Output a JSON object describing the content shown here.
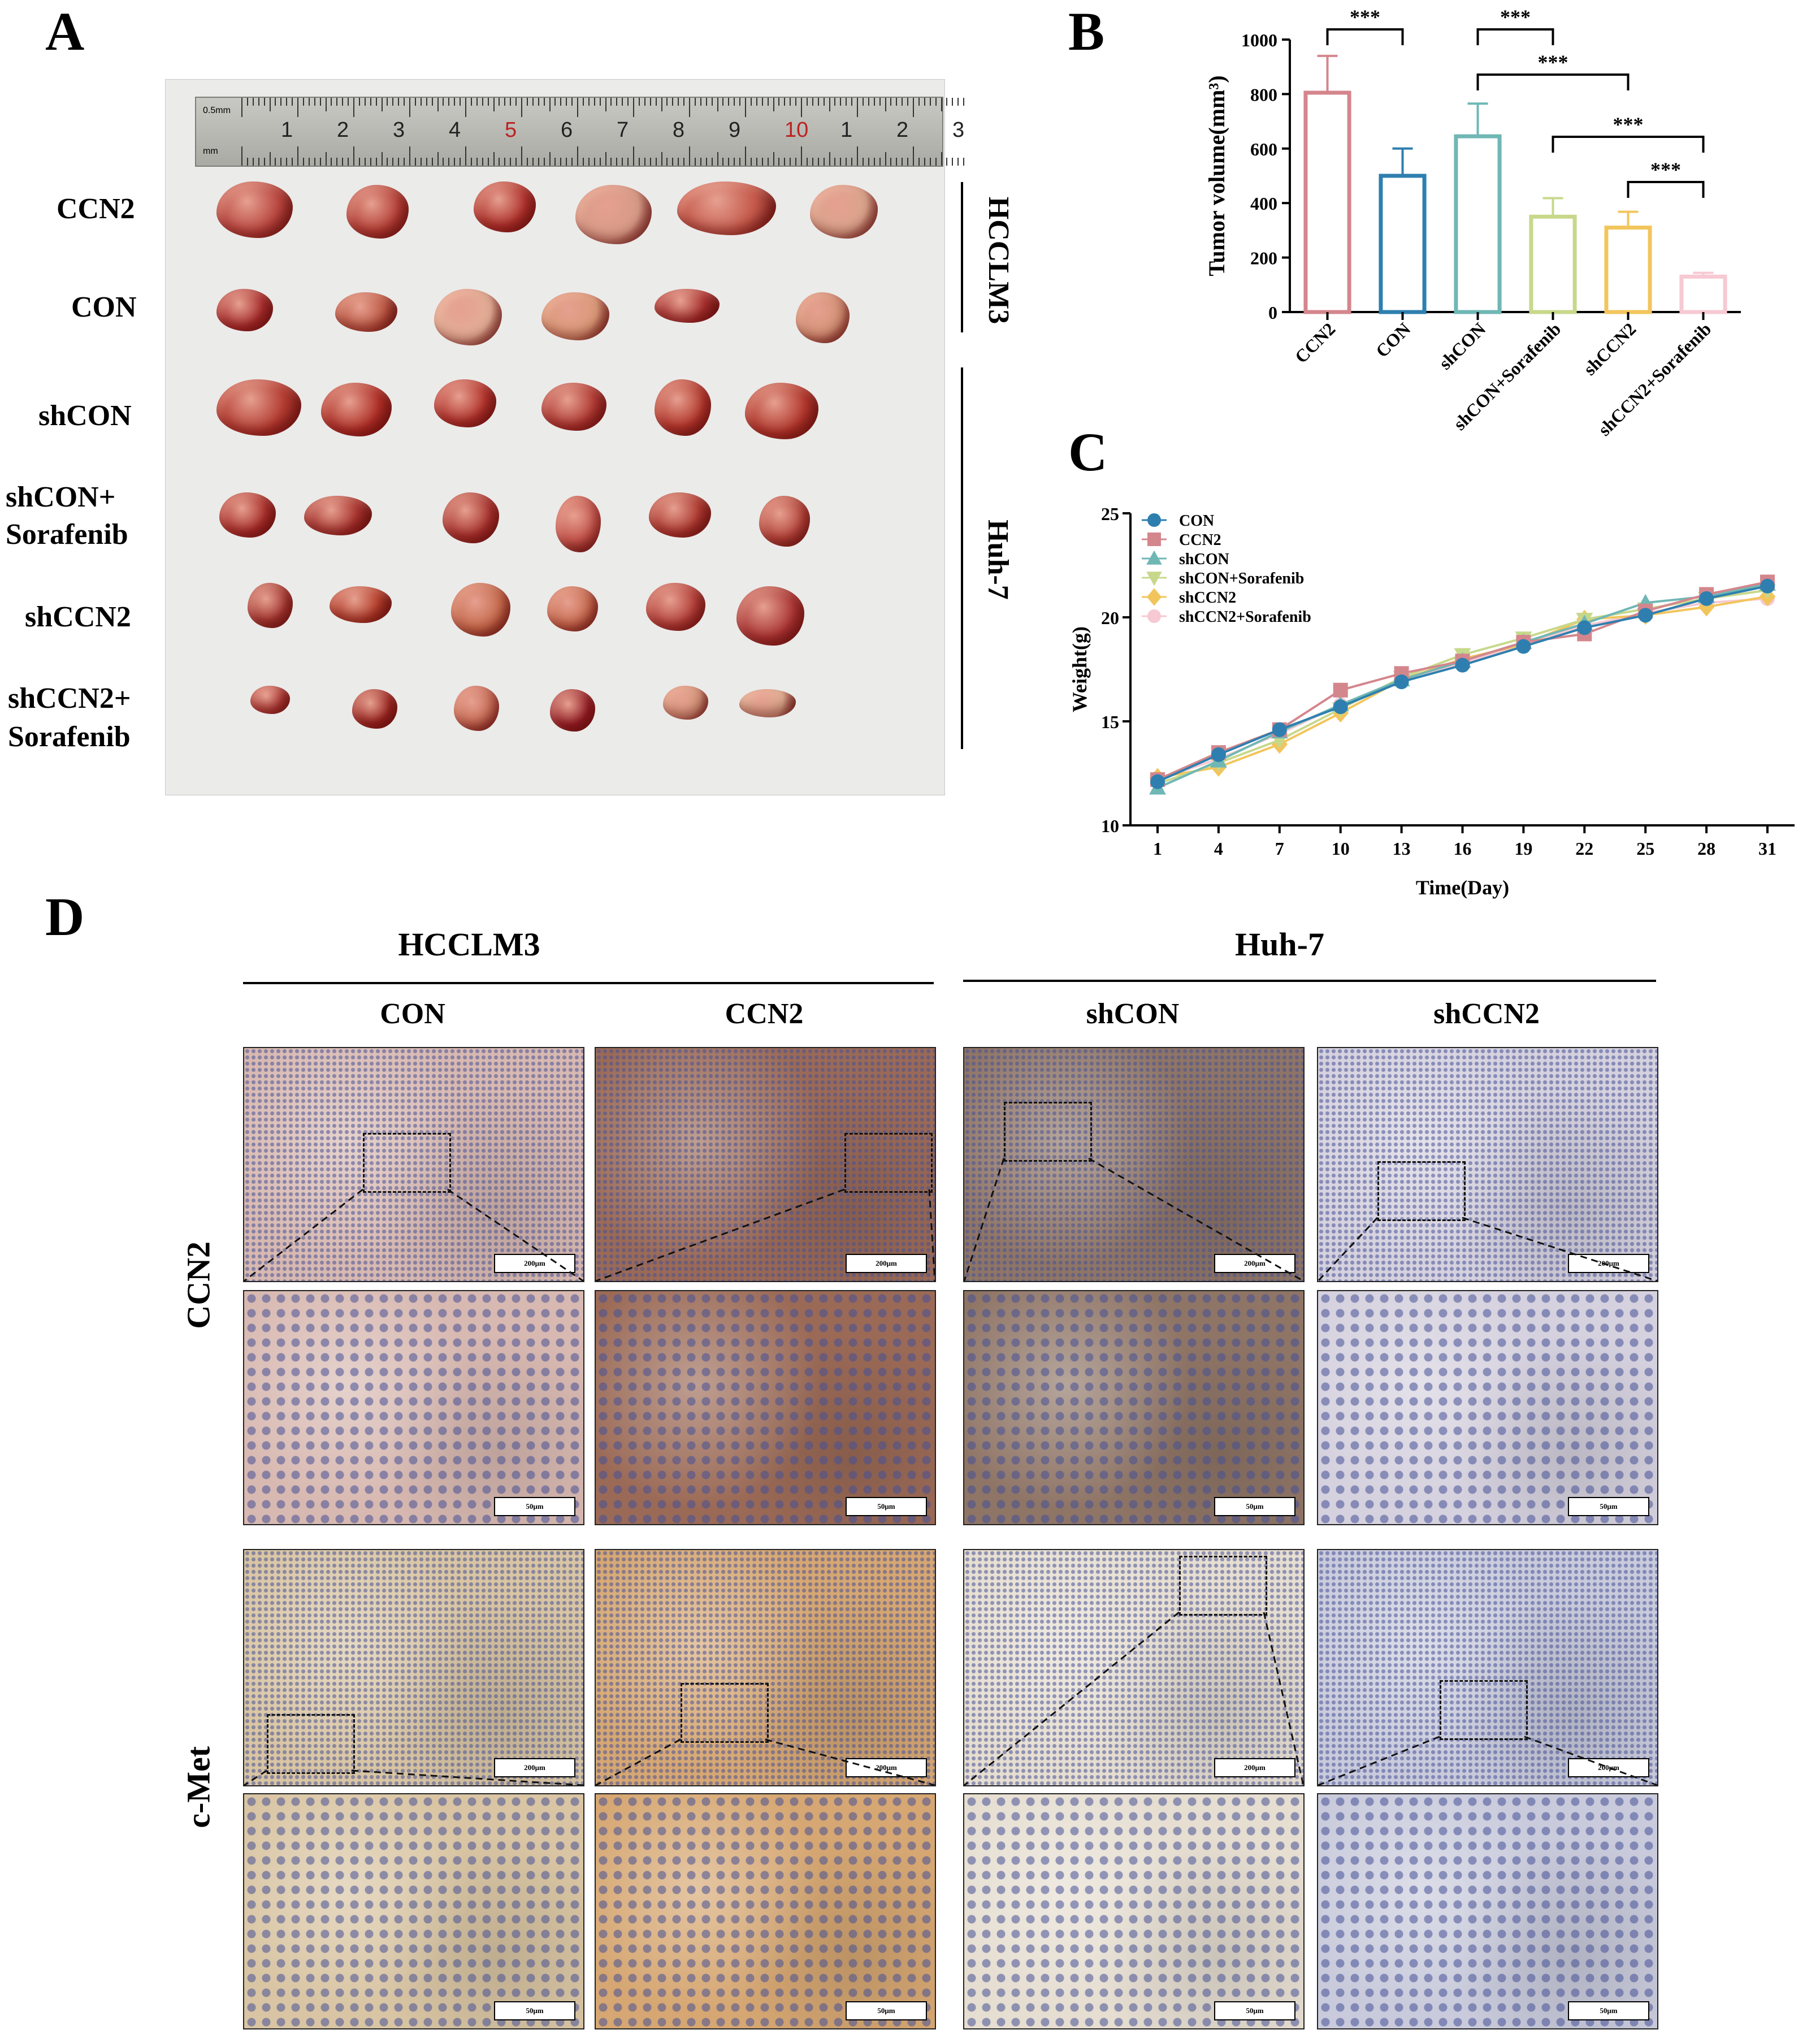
{
  "panels": {
    "a": "A",
    "b": "B",
    "c": "C",
    "d": "D"
  },
  "panel_a": {
    "row_labels": [
      "CCN2",
      "CON",
      "shCON",
      "shCON+",
      "Sorafenib",
      "shCCN2",
      "shCCN2+",
      "Sorafenib"
    ],
    "side_labels": {
      "top": "HCCLM3",
      "bottom": "Huh-7"
    },
    "ruler_marks": [
      "1",
      "2",
      "3",
      "4",
      "5",
      "6",
      "7",
      "8",
      "9",
      "10",
      "1",
      "2",
      "3"
    ],
    "ruler_small": "0.5mm",
    "ruler_unit": "mm"
  },
  "chart_data": [
    {
      "type": "bar",
      "ylabel": "Tumor volume(mm³)",
      "ylim": [
        0,
        1000
      ],
      "yticks": [
        "0",
        "200",
        "400",
        "600",
        "800",
        "1000"
      ],
      "categories": [
        "CCN2",
        "CON",
        "shCON",
        "shCON+Sorafenib",
        "shCCN2",
        "shCCN2+Sorafenib"
      ],
      "values": [
        805,
        500,
        645,
        350,
        310,
        130
      ],
      "errors": [
        135,
        100,
        120,
        68,
        58,
        14
      ],
      "colors": [
        "#d4868d",
        "#2e7faf",
        "#6fb7b4",
        "#c7d88b",
        "#f2c55c",
        "#f6c9d3"
      ],
      "significance": [
        {
          "from": 0,
          "to": 1,
          "label": "***"
        },
        {
          "from": 2,
          "to": 3,
          "label": "***"
        },
        {
          "from": 2,
          "to": 4,
          "label": "***"
        },
        {
          "from": 3,
          "to": 5,
          "label": "***"
        },
        {
          "from": 4,
          "to": 5,
          "label": "***"
        }
      ]
    },
    {
      "type": "line",
      "xlabel": "Time(Day)",
      "ylabel": "Weight(g)",
      "x": [
        1,
        4,
        7,
        10,
        13,
        16,
        19,
        22,
        25,
        28,
        31
      ],
      "xticks": [
        "1",
        "4",
        "7",
        "10",
        "13",
        "16",
        "19",
        "22",
        "25",
        "28",
        "31"
      ],
      "ylim": [
        10,
        25
      ],
      "yticks": [
        "10",
        "15",
        "20",
        "25"
      ],
      "series": [
        {
          "name": "CON",
          "color": "#2e7faf",
          "marker": "circle",
          "values": [
            12.1,
            13.4,
            14.6,
            15.7,
            16.9,
            17.7,
            18.6,
            19.5,
            20.1,
            20.9,
            21.5
          ]
        },
        {
          "name": "CCN2",
          "color": "#d4868d",
          "marker": "square",
          "values": [
            12.2,
            13.5,
            14.6,
            16.5,
            17.3,
            17.9,
            18.8,
            19.2,
            20.3,
            21.1,
            21.7
          ]
        },
        {
          "name": "shCON",
          "color": "#6fb7b4",
          "marker": "triangle-up",
          "values": [
            11.8,
            13.1,
            14.5,
            15.8,
            17.0,
            17.9,
            18.8,
            19.7,
            20.7,
            21.0,
            21.6
          ]
        },
        {
          "name": "shCON+Sorafenib",
          "color": "#c7d88b",
          "marker": "triangle-down",
          "values": [
            12.0,
            13.0,
            14.1,
            15.6,
            17.1,
            18.2,
            19.0,
            19.9,
            20.4,
            20.9,
            21.3
          ]
        },
        {
          "name": "shCCN2",
          "color": "#f2c55c",
          "marker": "diamond",
          "values": [
            12.3,
            12.8,
            13.9,
            15.4,
            17.0,
            18.0,
            18.7,
            19.9,
            20.1,
            20.5,
            21.0
          ]
        },
        {
          "name": "shCCN2+Sorafenib",
          "color": "#f6c9d3",
          "marker": "circle",
          "values": [
            12.2,
            13.2,
            14.4,
            15.8,
            17.0,
            17.8,
            18.7,
            19.6,
            20.2,
            20.7,
            20.9
          ]
        }
      ]
    }
  ],
  "panel_d": {
    "group_labels": [
      "HCCLM3",
      "Huh-7"
    ],
    "column_labels": [
      "CON",
      "CCN2",
      "shCON",
      "shCCN2"
    ],
    "row_labels": [
      "CCN2",
      "c-Met"
    ],
    "scale_low": "200μm",
    "scale_high": "50μm",
    "stain_colors": {
      "hcclm3_con_ccn2": "#d8b9b1",
      "hcclm3_ccn2_ccn2": "#9b6a56",
      "huh7_shcon_ccn2": "#8f7566",
      "huh7_shccn2_ccn2": "#d5d1de",
      "hcclm3_con_cmet": "#d9c5a3",
      "hcclm3_ccn2_cmet": "#d6a772",
      "huh7_shcon_cmet": "#e6ded1",
      "huh7_shccn2_cmet": "#c9cbdc"
    }
  }
}
